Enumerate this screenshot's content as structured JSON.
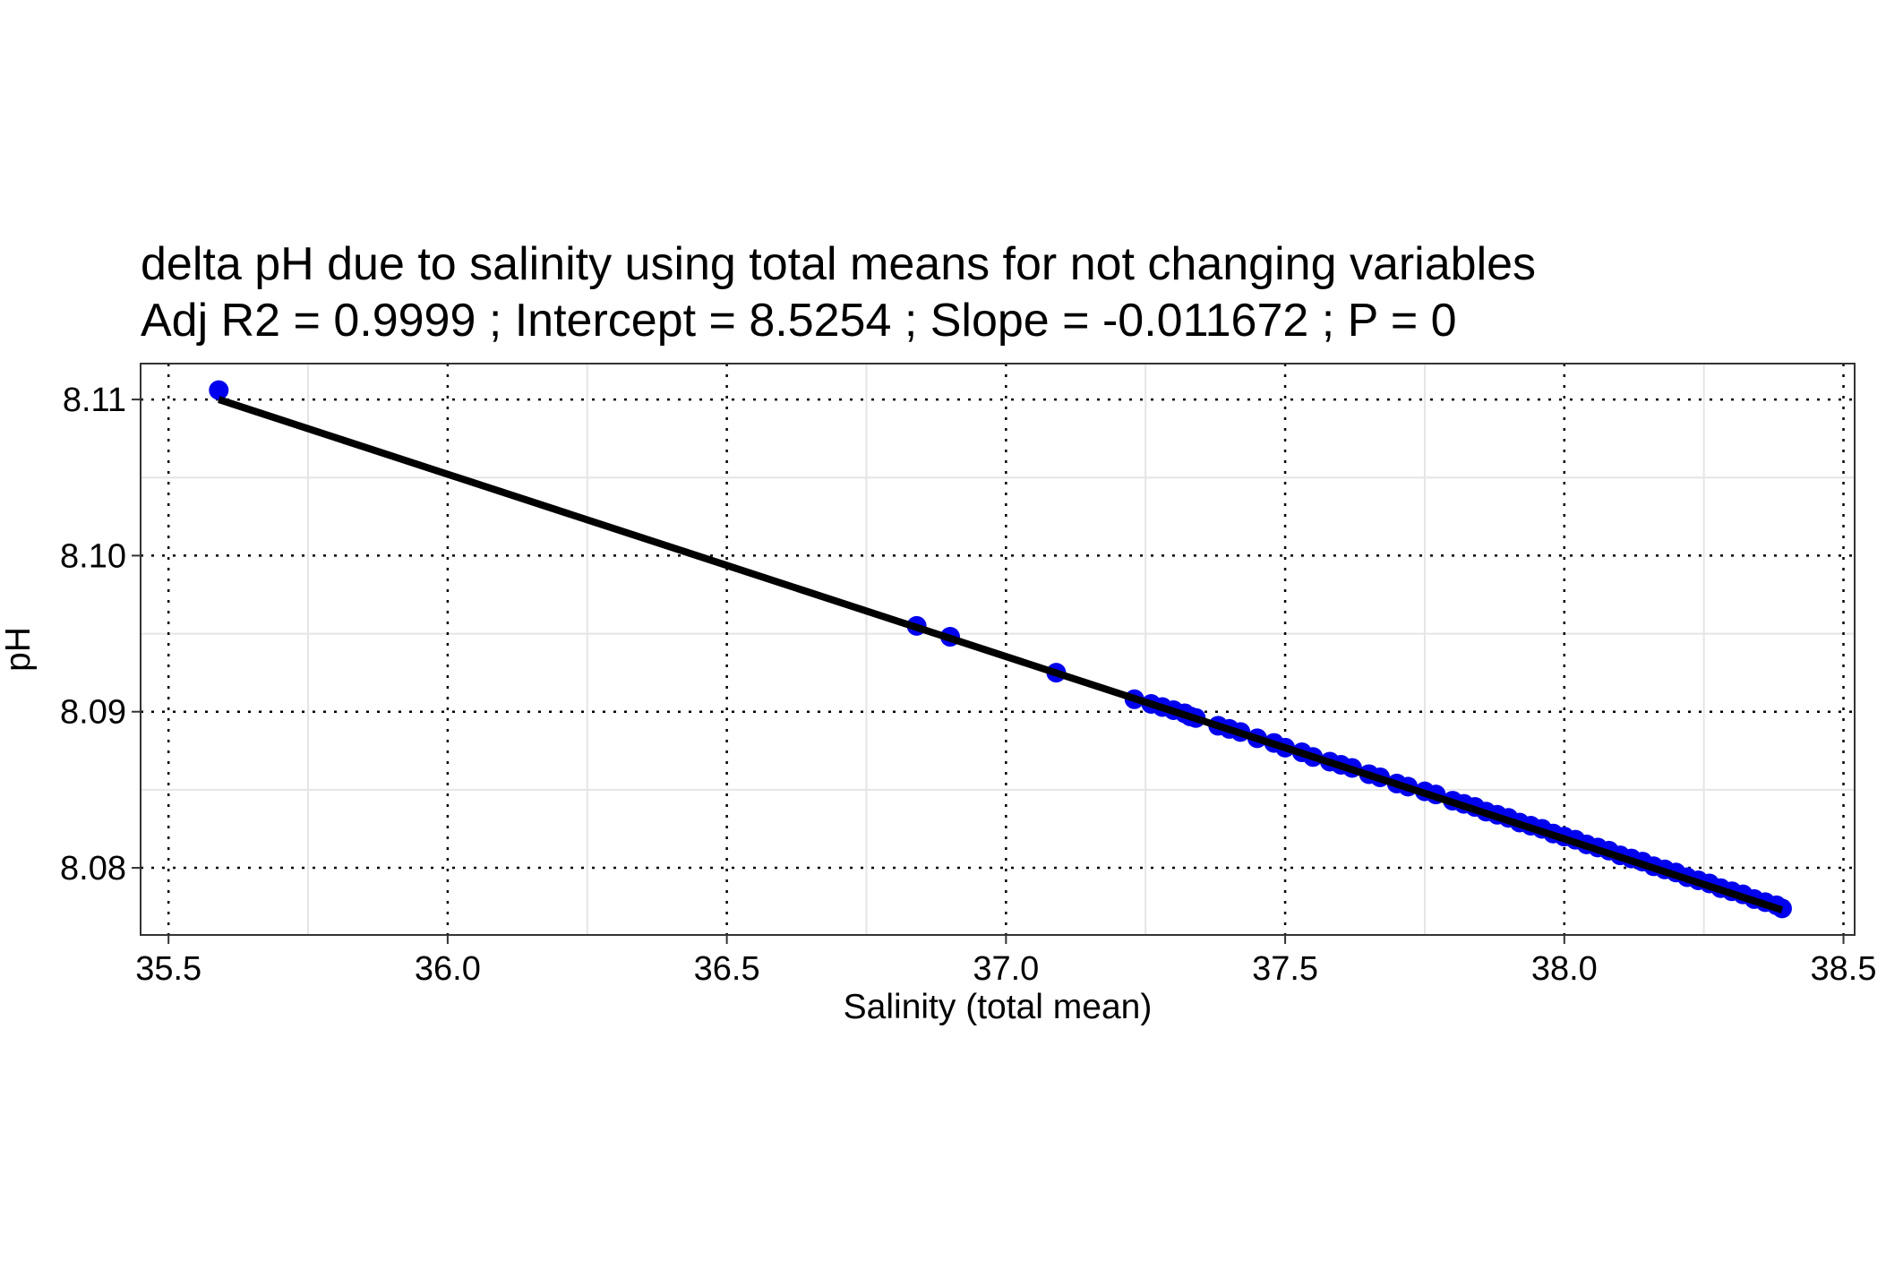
{
  "chart_data": {
    "type": "scatter",
    "title": "delta pH due to salinity using total means for not changing variables",
    "subtitle": "Adj R2 =  0.9999 ; Intercept = 8.5254 ; Slope = -0.011672 ; P = 0",
    "xlabel": "Salinity (total mean)",
    "ylabel": "pH",
    "xlim": [
      35.45,
      38.52
    ],
    "ylim": [
      8.0757,
      8.1123
    ],
    "x_ticks": [
      35.5,
      36.0,
      36.5,
      37.0,
      37.5,
      38.0,
      38.5
    ],
    "x_tick_labels": [
      "35.5",
      "36.0",
      "36.5",
      "37.0",
      "37.5",
      "38.0",
      "38.5"
    ],
    "y_ticks": [
      8.08,
      8.09,
      8.1,
      8.11
    ],
    "y_tick_labels": [
      "8.08",
      "8.09",
      "8.10",
      "8.11"
    ],
    "grid": true,
    "point_color": "#0000ee",
    "line_color": "#000000",
    "fit": {
      "x": [
        35.59,
        38.39
      ],
      "y": [
        8.11,
        8.0773
      ]
    },
    "series": [
      {
        "x": [
          35.59,
          36.84,
          36.9,
          37.09,
          37.23,
          37.26,
          37.28,
          37.3,
          37.32,
          37.33,
          37.34,
          37.38,
          37.4,
          37.42,
          37.45,
          37.48,
          37.5,
          37.53,
          37.55,
          37.58,
          37.6,
          37.62,
          37.65,
          37.67,
          37.7,
          37.72,
          37.75,
          37.77,
          37.8,
          37.82,
          37.84,
          37.86,
          37.88,
          37.9,
          37.92,
          37.94,
          37.96,
          37.98,
          38.0,
          38.02,
          38.04,
          38.06,
          38.08,
          38.1,
          38.12,
          38.14,
          38.16,
          38.18,
          38.2,
          38.22,
          38.24,
          38.26,
          38.28,
          38.3,
          38.32,
          38.34,
          38.36,
          38.38,
          38.39
        ],
        "y": [
          8.1106,
          8.0955,
          8.0948,
          8.0925,
          8.0908,
          8.0905,
          8.0903,
          8.0901,
          8.0899,
          8.0897,
          8.0896,
          8.0891,
          8.0889,
          8.0887,
          8.0883,
          8.088,
          8.0877,
          8.0874,
          8.0871,
          8.0868,
          8.0866,
          8.0864,
          8.086,
          8.0858,
          8.0854,
          8.0852,
          8.0849,
          8.0847,
          8.0843,
          8.0841,
          8.0839,
          8.0836,
          8.0834,
          8.0832,
          8.0829,
          8.0827,
          8.0825,
          8.0822,
          8.082,
          8.0818,
          8.0815,
          8.0813,
          8.0811,
          8.0808,
          8.0806,
          8.0804,
          8.0801,
          8.0799,
          8.0797,
          8.0794,
          8.0792,
          8.079,
          8.0787,
          8.0785,
          8.0783,
          8.078,
          8.0778,
          8.0776,
          8.0774
        ]
      }
    ]
  }
}
